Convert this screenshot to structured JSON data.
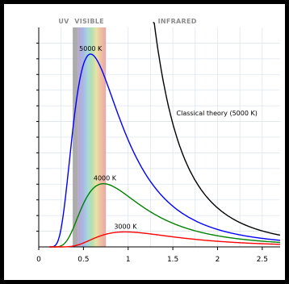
{
  "chart_data": {
    "type": "line",
    "title": "",
    "xlabel": "",
    "ylabel": "",
    "xlim": [
      0,
      2.7
    ],
    "ylim": [
      0,
      14
    ],
    "grid": true,
    "x_ticks": [
      0,
      0.5,
      1,
      1.5,
      2,
      2.5
    ],
    "x_tick_labels": [
      "0",
      "0.5",
      "1",
      "1.5",
      "2",
      "2.5"
    ],
    "y_ticks": [
      1,
      2,
      3,
      4,
      5,
      6,
      7,
      8,
      9,
      10,
      11,
      12,
      13
    ],
    "bands": [
      {
        "label": "UV",
        "from": 0,
        "to": 0.38
      },
      {
        "label": "VISIBLE",
        "from": 0.38,
        "to": 0.75
      },
      {
        "label": "INFRARED",
        "from": 0.75,
        "to": 2.7
      }
    ],
    "series": [
      {
        "name": "5000 K",
        "label": "5000 K",
        "color": "#0000ff",
        "temperature": 5000,
        "label_x": 0.58
      },
      {
        "name": "4000 K",
        "label": "4000 K",
        "color": "#008000",
        "temperature": 4000,
        "label_x": 0.74
      },
      {
        "name": "3000 K",
        "label": "3000 K",
        "color": "#ff0000",
        "temperature": 3000,
        "label_x": 0.97
      },
      {
        "name": "Classical theory (5000 K)",
        "label": "Classical theory (5000 K)",
        "color": "#000000",
        "temperature": 5000,
        "classical": true
      }
    ]
  }
}
